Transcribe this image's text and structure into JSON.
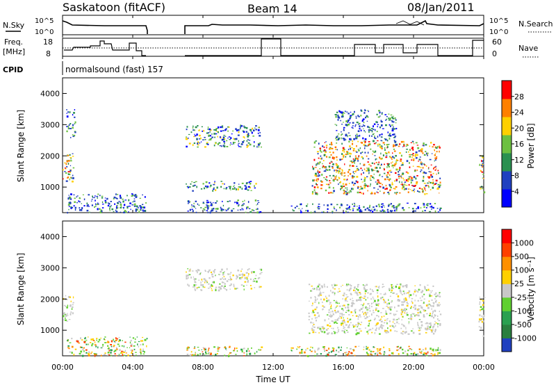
{
  "header": {
    "station": "Saskatoon (fitACF)",
    "beam": "Beam 14",
    "date": "08/Jan/2011"
  },
  "noise_panel": {
    "left_label": "N.Sky",
    "right_label": "N.Search",
    "ticks": [
      "10^5",
      "10^0"
    ]
  },
  "freq_panel": {
    "left_label_line1": "Freq.",
    "left_label_line2": "[MHz]",
    "left_ticks": [
      "18",
      "8"
    ],
    "right_label": "Nave",
    "right_ticks": [
      "60",
      "0"
    ]
  },
  "cpid": {
    "label": "CPID",
    "value": "normalsound (fast) 157"
  },
  "chart_data": [
    {
      "type": "heatmap",
      "title": "",
      "ylabel": "Slant Range [km]",
      "xlabel": "",
      "x_range_hours": [
        0,
        24
      ],
      "ylim": [
        180,
        4500
      ],
      "y_ticks": [
        "4000",
        "3000",
        "2000",
        "1000"
      ],
      "colorbar": {
        "label": "Power [dB]",
        "ticks": [
          "28",
          "24",
          "20",
          "16",
          "12",
          "8",
          "4"
        ],
        "colors": [
          "#0000ff",
          "#2040c0",
          "#2a9050",
          "#6cc040",
          "#ffd000",
          "#ff8000",
          "#ff0000"
        ]
      },
      "echo_regions": [
        {
          "t": [
            0.0,
            0.6
          ],
          "range": [
            1200,
            2200
          ],
          "level": "high"
        },
        {
          "t": [
            0.2,
            0.7
          ],
          "range": [
            2600,
            3500
          ],
          "level": "low"
        },
        {
          "t": [
            0.2,
            4.8
          ],
          "range": [
            200,
            800
          ],
          "level": "low"
        },
        {
          "t": [
            7.0,
            11.3
          ],
          "range": [
            2300,
            3000
          ],
          "level": "mid"
        },
        {
          "t": [
            7.0,
            11.0
          ],
          "range": [
            900,
            1200
          ],
          "level": "mid"
        },
        {
          "t": [
            7.0,
            11.3
          ],
          "range": [
            200,
            600
          ],
          "level": "low"
        },
        {
          "t": [
            13.0,
            21.5
          ],
          "range": [
            200,
            500
          ],
          "level": "low"
        },
        {
          "t": [
            14.2,
            21.5
          ],
          "range": [
            800,
            2500
          ],
          "level": "high"
        },
        {
          "t": [
            15.5,
            19.0
          ],
          "range": [
            2500,
            3500
          ],
          "level": "low"
        },
        {
          "t": [
            23.7,
            24.0
          ],
          "range": [
            800,
            2100
          ],
          "level": "high"
        }
      ]
    },
    {
      "type": "heatmap",
      "title": "",
      "ylabel": "Slant Range [km]",
      "xlabel": "Time UT",
      "x_range_hours": [
        0,
        24
      ],
      "ylim": [
        180,
        4500
      ],
      "y_ticks": [
        "4000",
        "3000",
        "2000",
        "1000"
      ],
      "x_ticks": [
        "00:00",
        "04:00",
        "08:00",
        "12:00",
        "16:00",
        "20:00",
        "00:00"
      ],
      "colorbar": {
        "label": "Velocity [m s⁻¹]",
        "ticks": [
          "1000",
          "500",
          "100",
          "25",
          "-25",
          "-100",
          "-500",
          "-1000"
        ],
        "colors": [
          "#2040c0",
          "#2a7f3f",
          "#2aa050",
          "#60d030",
          "#c8c8c8",
          "#ffd000",
          "#ff9000",
          "#ff4000",
          "#ff0000"
        ]
      },
      "echo_regions": [
        {
          "t": [
            0.0,
            0.6
          ],
          "range": [
            1300,
            2200
          ],
          "level": "ground"
        },
        {
          "t": [
            0.2,
            4.8
          ],
          "range": [
            200,
            800
          ],
          "level": "mixed"
        },
        {
          "t": [
            7.0,
            11.3
          ],
          "range": [
            2300,
            3000
          ],
          "level": "ground"
        },
        {
          "t": [
            7.0,
            11.3
          ],
          "range": [
            200,
            500
          ],
          "level": "mixed"
        },
        {
          "t": [
            14.0,
            21.5
          ],
          "range": [
            900,
            2500
          ],
          "level": "ground"
        },
        {
          "t": [
            13.0,
            21.5
          ],
          "range": [
            200,
            500
          ],
          "level": "mixed"
        },
        {
          "t": [
            23.7,
            24.0
          ],
          "range": [
            800,
            2100
          ],
          "level": "ground"
        }
      ]
    }
  ]
}
